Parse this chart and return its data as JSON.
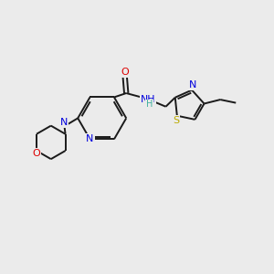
{
  "background_color": "#ebebeb",
  "bond_color": "#1a1a1a",
  "figsize": [
    3.0,
    3.0
  ],
  "dpi": 100,
  "atom_colors": {
    "N": "#0000dd",
    "O": "#dd0000",
    "S": "#bbaa00",
    "C": "#1a1a1a",
    "H": "#1a1a1a"
  },
  "lw": 1.4,
  "fs": 7.5
}
